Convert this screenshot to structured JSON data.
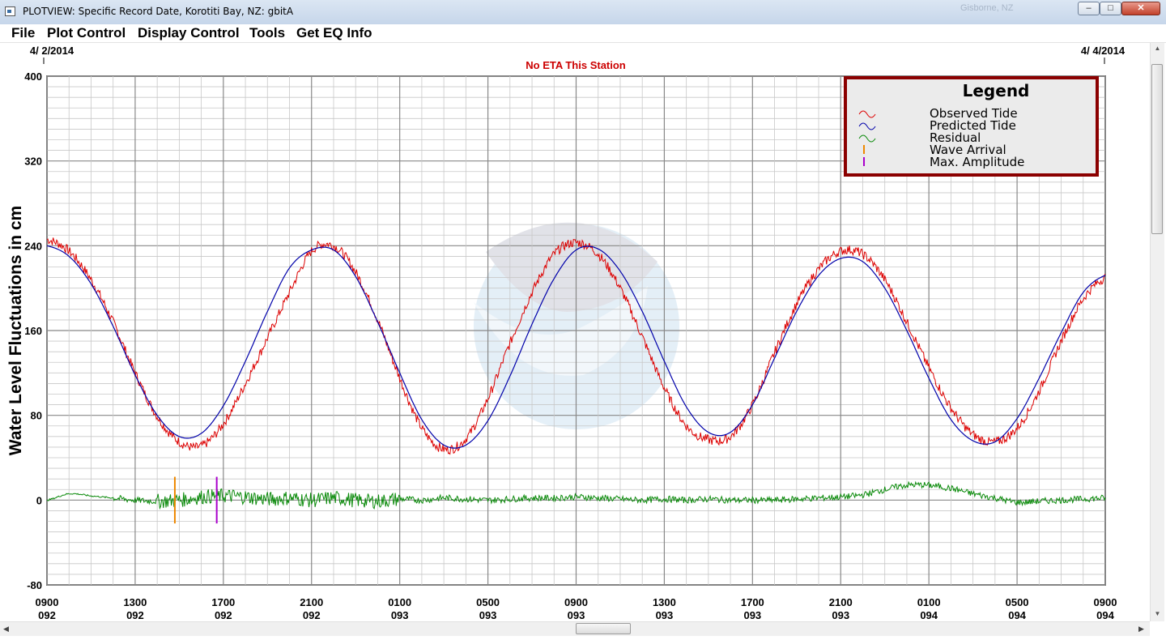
{
  "window": {
    "title": "PLOTVIEW: Specific Record Date, Korotiti Bay, NZ: gbitA",
    "background_text": "Gisborne, NZ"
  },
  "menu": {
    "items": [
      "File",
      "Plot Control",
      "Display Control",
      "Tools",
      "Get EQ Info"
    ]
  },
  "plot": {
    "start_date": "4/ 2/2014",
    "end_date": "4/ 4/2014",
    "eta_note": "No ETA This Station",
    "legend_title": "Legend",
    "legend_items": [
      "Observed Tide",
      "Predicted Tide",
      "Residual",
      "Wave Arrival",
      "Max. Amplitude"
    ]
  },
  "chart_data": {
    "type": "line",
    "title": "No ETA This Station",
    "ylabel": "Water Level Fluctuations in cm",
    "xlabel": "",
    "ylim": [
      -80,
      400
    ],
    "yticks": [
      -80,
      0,
      80,
      160,
      240,
      320,
      400
    ],
    "xlim": [
      0,
      48
    ],
    "x_units": "hours since 0900 day 092",
    "xtick_positions": [
      0,
      4,
      8,
      12,
      16,
      20,
      24,
      28,
      32,
      36,
      40,
      44,
      48
    ],
    "xtick_labels": [
      [
        "0900",
        "092"
      ],
      [
        "1300",
        "092"
      ],
      [
        "1700",
        "092"
      ],
      [
        "2100",
        "092"
      ],
      [
        "0100",
        "093"
      ],
      [
        "0500",
        "093"
      ],
      [
        "0900",
        "093"
      ],
      [
        "1300",
        "093"
      ],
      [
        "1700",
        "093"
      ],
      [
        "2100",
        "093"
      ],
      [
        "0100",
        "094"
      ],
      [
        "0500",
        "094"
      ],
      [
        "0900",
        "094"
      ]
    ],
    "grid": true,
    "legend_position": "top-right",
    "series": [
      {
        "name": "Observed Tide",
        "color": "#dd0000",
        "x": [
          0,
          1,
          2,
          3,
          4,
          5,
          6,
          7,
          8,
          9,
          10,
          11,
          12,
          13,
          14,
          15,
          16,
          17,
          18,
          19,
          20,
          21,
          22,
          23,
          24,
          25,
          26,
          27,
          28,
          29,
          30,
          31,
          32,
          33,
          34,
          35,
          36,
          37,
          38,
          39,
          40,
          41,
          42,
          43,
          44,
          45,
          46,
          47,
          48
        ],
        "values": [
          246,
          235,
          208,
          168,
          120,
          79,
          55,
          51,
          72,
          110,
          153,
          196,
          235,
          240,
          215,
          170,
          115,
          68,
          48,
          58,
          96,
          148,
          196,
          232,
          243,
          232,
          200,
          154,
          106,
          70,
          57,
          60,
          90,
          139,
          185,
          218,
          235,
          232,
          208,
          168,
          125,
          87,
          62,
          55,
          68,
          103,
          150,
          190,
          210
        ]
      },
      {
        "name": "Predicted Tide",
        "color": "#0000aa",
        "x": [
          0,
          1,
          2,
          3,
          4,
          5,
          6,
          7,
          8,
          9,
          10,
          11,
          12,
          13,
          14,
          15,
          16,
          17,
          18,
          19,
          20,
          21,
          22,
          23,
          24,
          25,
          26,
          27,
          28,
          29,
          30,
          31,
          32,
          33,
          34,
          35,
          36,
          37,
          38,
          39,
          40,
          41,
          42,
          43,
          44,
          45,
          46,
          47,
          48
        ],
        "values": [
          240,
          230,
          204,
          164,
          118,
          80,
          60,
          63,
          89,
          131,
          178,
          219,
          236,
          236,
          211,
          168,
          120,
          76,
          52,
          52,
          75,
          117,
          166,
          209,
          236,
          237,
          216,
          178,
          131,
          88,
          64,
          64,
          90,
          134,
          178,
          212,
          228,
          225,
          200,
          160,
          115,
          76,
          56,
          55,
          77,
          115,
          158,
          196,
          212
        ]
      },
      {
        "name": "Residual",
        "color": "#0a8a0a",
        "x": [
          0,
          1,
          2,
          3,
          4,
          5,
          6,
          7,
          8,
          9,
          10,
          11,
          12,
          13,
          14,
          15,
          16,
          17,
          18,
          19,
          20,
          21,
          22,
          23,
          24,
          25,
          26,
          27,
          28,
          29,
          30,
          31,
          32,
          33,
          34,
          35,
          36,
          37,
          38,
          39,
          40,
          41,
          42,
          43,
          44,
          45,
          46,
          47,
          48
        ],
        "values": [
          0,
          6,
          4,
          2,
          0,
          -1,
          0,
          3,
          4,
          3,
          1,
          2,
          0,
          2,
          0,
          -1,
          1,
          0,
          2,
          1,
          0,
          1,
          2,
          2,
          3,
          2,
          1,
          0,
          1,
          0,
          1,
          0,
          0,
          0,
          1,
          2,
          3,
          5,
          10,
          14,
          14,
          11,
          6,
          2,
          -2,
          -1,
          0,
          1,
          2
        ]
      }
    ],
    "markers": [
      {
        "name": "Wave Arrival",
        "x": 5.8,
        "color": "#ee8800"
      },
      {
        "name": "Max. Amplitude",
        "x": 7.7,
        "color": "#aa00cc"
      }
    ]
  }
}
